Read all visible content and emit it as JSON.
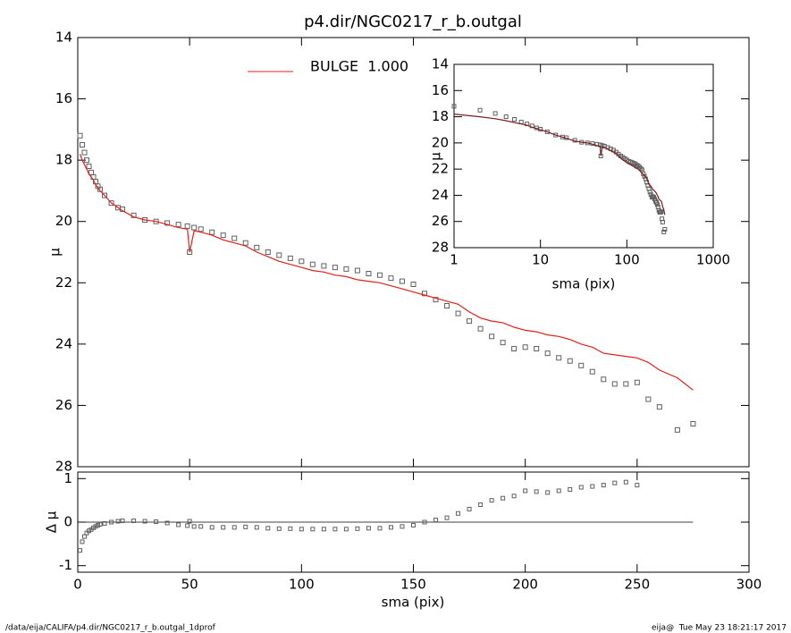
{
  "footer": {
    "left": "/data/eija/CALIFA/p4.dir/NGC0217_r_b.outgal_1dprof",
    "right": "eija@  Tue May 23 18:21:17 2017"
  },
  "chart_data": [
    {
      "type": "scatter",
      "title": "p4.dir/NGC0217_r_b.outgal",
      "x": [
        1,
        2,
        3,
        4,
        5,
        6,
        7,
        8,
        9,
        10,
        12,
        15,
        18,
        20,
        25,
        30,
        35,
        40,
        45,
        49,
        50,
        52,
        55,
        60,
        65,
        70,
        75,
        80,
        85,
        90,
        95,
        100,
        105,
        110,
        115,
        120,
        125,
        130,
        135,
        140,
        145,
        150,
        155,
        160,
        165,
        170,
        175,
        180,
        185,
        190,
        195,
        200,
        205,
        210,
        215,
        220,
        225,
        230,
        235,
        240,
        245,
        250,
        255,
        260,
        268,
        275
      ],
      "series": [
        {
          "color": "#606060",
          "marker": "square",
          "values": [
            17.2,
            17.5,
            17.75,
            18.0,
            18.2,
            18.4,
            18.55,
            18.7,
            18.85,
            18.95,
            19.15,
            19.4,
            19.55,
            19.6,
            19.8,
            19.95,
            20.0,
            20.05,
            20.1,
            20.15,
            21.0,
            20.2,
            20.25,
            20.35,
            20.45,
            20.55,
            20.7,
            20.85,
            21.0,
            21.1,
            21.2,
            21.3,
            21.4,
            21.45,
            21.5,
            21.55,
            21.6,
            21.7,
            21.75,
            21.85,
            21.95,
            22.05,
            22.35,
            22.55,
            22.75,
            23.0,
            23.25,
            23.5,
            23.75,
            23.95,
            24.15,
            24.1,
            24.15,
            24.3,
            24.45,
            24.55,
            24.7,
            24.9,
            25.15,
            25.3,
            25.3,
            25.25,
            25.8,
            26.05,
            26.8,
            26.6
          ]
        },
        {
          "name": "BULGE  1.000",
          "color": "#e0201b",
          "marker": "line",
          "values": [
            17.8,
            18.0,
            18.15,
            18.3,
            18.45,
            18.55,
            18.65,
            18.8,
            18.9,
            19.0,
            19.15,
            19.4,
            19.55,
            19.65,
            19.85,
            19.95,
            20.0,
            20.1,
            20.2,
            20.25,
            21.0,
            20.3,
            20.35,
            20.45,
            20.6,
            20.7,
            20.8,
            21.0,
            21.15,
            21.3,
            21.4,
            21.5,
            21.6,
            21.65,
            21.75,
            21.8,
            21.9,
            21.95,
            22.0,
            22.1,
            22.2,
            22.3,
            22.4,
            22.5,
            22.6,
            22.7,
            22.95,
            23.15,
            23.25,
            23.3,
            23.45,
            23.55,
            23.6,
            23.7,
            23.75,
            23.85,
            24.0,
            24.1,
            24.3,
            24.35,
            24.4,
            24.45,
            24.6,
            24.85,
            25.1,
            25.5
          ]
        }
      ],
      "xlim": [
        0,
        300
      ],
      "ylim": [
        28,
        14
      ],
      "yticks": [
        14,
        16,
        18,
        20,
        22,
        24,
        26,
        28
      ],
      "ylabel": "μ",
      "legend": "top"
    },
    {
      "type": "scatter",
      "color": "#606060",
      "values": [
        -0.65,
        -0.45,
        -0.33,
        -0.25,
        -0.2,
        -0.17,
        -0.13,
        -0.1,
        -0.07,
        -0.05,
        -0.03,
        0.0,
        0.02,
        0.03,
        0.03,
        0.02,
        0.01,
        -0.02,
        -0.06,
        -0.08,
        0.02,
        -0.1,
        -0.1,
        -0.12,
        -0.12,
        -0.12,
        -0.11,
        -0.12,
        -0.14,
        -0.15,
        -0.15,
        -0.16,
        -0.16,
        -0.16,
        -0.16,
        -0.16,
        -0.15,
        -0.14,
        -0.14,
        -0.12,
        -0.1,
        -0.07,
        0.0,
        0.05,
        0.1,
        0.2,
        0.3,
        0.4,
        0.5,
        0.55,
        0.6,
        0.72,
        0.7,
        0.68,
        0.72,
        0.75,
        0.8,
        0.82,
        0.85,
        0.9,
        0.92,
        0.85,
        null,
        null,
        null,
        null
      ],
      "xlim": [
        0,
        300
      ],
      "xticks": [
        0,
        50,
        100,
        150,
        200,
        250,
        300
      ],
      "xlabel": "sma (pix)",
      "ylim": [
        -1.15,
        1.15
      ],
      "yticks": [
        -1,
        0,
        1
      ],
      "ylabel": "Δ μ"
    },
    {
      "type": "scatter",
      "xlog": true,
      "xlim": [
        1,
        1000
      ],
      "xticks": [
        1,
        10,
        100,
        1000
      ],
      "xlabel": "sma (pix)",
      "ylim": [
        28,
        14
      ],
      "yticks": [
        14,
        16,
        18,
        20,
        22,
        24,
        26,
        28
      ],
      "ylabel": "μ",
      "colors": [
        "#606060",
        "#7b1d1d"
      ]
    }
  ]
}
